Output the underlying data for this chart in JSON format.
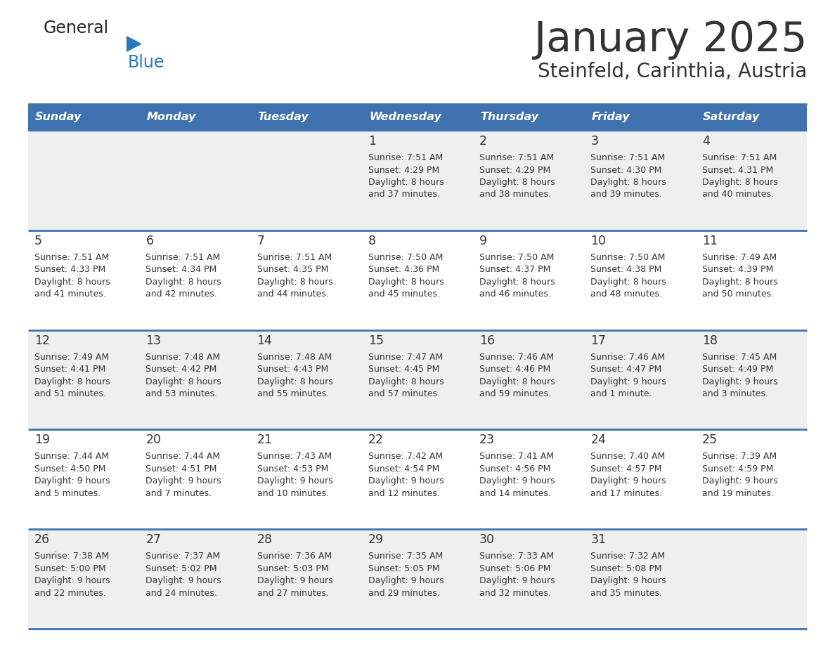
{
  "title": "January 2025",
  "subtitle": "Steinfeld, Carinthia, Austria",
  "days_of_week": [
    "Sunday",
    "Monday",
    "Tuesday",
    "Wednesday",
    "Thursday",
    "Friday",
    "Saturday"
  ],
  "header_bg": "#4072B0",
  "header_text": "#FFFFFF",
  "cell_bg_odd": "#EFEFEF",
  "cell_bg_even": "#FFFFFF",
  "row_line_color": "#4072B0",
  "text_color": "#333333",
  "title_color": "#333333",
  "logo_blue_color": "#2878BD",
  "calendar_data": [
    [
      {
        "day": null
      },
      {
        "day": null
      },
      {
        "day": null
      },
      {
        "day": 1,
        "sunrise": "7:51 AM",
        "sunset": "4:29 PM",
        "daylight_line1": "8 hours",
        "daylight_line2": "and 37 minutes."
      },
      {
        "day": 2,
        "sunrise": "7:51 AM",
        "sunset": "4:29 PM",
        "daylight_line1": "8 hours",
        "daylight_line2": "and 38 minutes."
      },
      {
        "day": 3,
        "sunrise": "7:51 AM",
        "sunset": "4:30 PM",
        "daylight_line1": "8 hours",
        "daylight_line2": "and 39 minutes."
      },
      {
        "day": 4,
        "sunrise": "7:51 AM",
        "sunset": "4:31 PM",
        "daylight_line1": "8 hours",
        "daylight_line2": "and 40 minutes."
      }
    ],
    [
      {
        "day": 5,
        "sunrise": "7:51 AM",
        "sunset": "4:33 PM",
        "daylight_line1": "8 hours",
        "daylight_line2": "and 41 minutes."
      },
      {
        "day": 6,
        "sunrise": "7:51 AM",
        "sunset": "4:34 PM",
        "daylight_line1": "8 hours",
        "daylight_line2": "and 42 minutes."
      },
      {
        "day": 7,
        "sunrise": "7:51 AM",
        "sunset": "4:35 PM",
        "daylight_line1": "8 hours",
        "daylight_line2": "and 44 minutes."
      },
      {
        "day": 8,
        "sunrise": "7:50 AM",
        "sunset": "4:36 PM",
        "daylight_line1": "8 hours",
        "daylight_line2": "and 45 minutes."
      },
      {
        "day": 9,
        "sunrise": "7:50 AM",
        "sunset": "4:37 PM",
        "daylight_line1": "8 hours",
        "daylight_line2": "and 46 minutes."
      },
      {
        "day": 10,
        "sunrise": "7:50 AM",
        "sunset": "4:38 PM",
        "daylight_line1": "8 hours",
        "daylight_line2": "and 48 minutes."
      },
      {
        "day": 11,
        "sunrise": "7:49 AM",
        "sunset": "4:39 PM",
        "daylight_line1": "8 hours",
        "daylight_line2": "and 50 minutes."
      }
    ],
    [
      {
        "day": 12,
        "sunrise": "7:49 AM",
        "sunset": "4:41 PM",
        "daylight_line1": "8 hours",
        "daylight_line2": "and 51 minutes."
      },
      {
        "day": 13,
        "sunrise": "7:48 AM",
        "sunset": "4:42 PM",
        "daylight_line1": "8 hours",
        "daylight_line2": "and 53 minutes."
      },
      {
        "day": 14,
        "sunrise": "7:48 AM",
        "sunset": "4:43 PM",
        "daylight_line1": "8 hours",
        "daylight_line2": "and 55 minutes."
      },
      {
        "day": 15,
        "sunrise": "7:47 AM",
        "sunset": "4:45 PM",
        "daylight_line1": "8 hours",
        "daylight_line2": "and 57 minutes."
      },
      {
        "day": 16,
        "sunrise": "7:46 AM",
        "sunset": "4:46 PM",
        "daylight_line1": "8 hours",
        "daylight_line2": "and 59 minutes."
      },
      {
        "day": 17,
        "sunrise": "7:46 AM",
        "sunset": "4:47 PM",
        "daylight_line1": "9 hours",
        "daylight_line2": "and 1 minute."
      },
      {
        "day": 18,
        "sunrise": "7:45 AM",
        "sunset": "4:49 PM",
        "daylight_line1": "9 hours",
        "daylight_line2": "and 3 minutes."
      }
    ],
    [
      {
        "day": 19,
        "sunrise": "7:44 AM",
        "sunset": "4:50 PM",
        "daylight_line1": "9 hours",
        "daylight_line2": "and 5 minutes."
      },
      {
        "day": 20,
        "sunrise": "7:44 AM",
        "sunset": "4:51 PM",
        "daylight_line1": "9 hours",
        "daylight_line2": "and 7 minutes."
      },
      {
        "day": 21,
        "sunrise": "7:43 AM",
        "sunset": "4:53 PM",
        "daylight_line1": "9 hours",
        "daylight_line2": "and 10 minutes."
      },
      {
        "day": 22,
        "sunrise": "7:42 AM",
        "sunset": "4:54 PM",
        "daylight_line1": "9 hours",
        "daylight_line2": "and 12 minutes."
      },
      {
        "day": 23,
        "sunrise": "7:41 AM",
        "sunset": "4:56 PM",
        "daylight_line1": "9 hours",
        "daylight_line2": "and 14 minutes."
      },
      {
        "day": 24,
        "sunrise": "7:40 AM",
        "sunset": "4:57 PM",
        "daylight_line1": "9 hours",
        "daylight_line2": "and 17 minutes."
      },
      {
        "day": 25,
        "sunrise": "7:39 AM",
        "sunset": "4:59 PM",
        "daylight_line1": "9 hours",
        "daylight_line2": "and 19 minutes."
      }
    ],
    [
      {
        "day": 26,
        "sunrise": "7:38 AM",
        "sunset": "5:00 PM",
        "daylight_line1": "9 hours",
        "daylight_line2": "and 22 minutes."
      },
      {
        "day": 27,
        "sunrise": "7:37 AM",
        "sunset": "5:02 PM",
        "daylight_line1": "9 hours",
        "daylight_line2": "and 24 minutes."
      },
      {
        "day": 28,
        "sunrise": "7:36 AM",
        "sunset": "5:03 PM",
        "daylight_line1": "9 hours",
        "daylight_line2": "and 27 minutes."
      },
      {
        "day": 29,
        "sunrise": "7:35 AM",
        "sunset": "5:05 PM",
        "daylight_line1": "9 hours",
        "daylight_line2": "and 29 minutes."
      },
      {
        "day": 30,
        "sunrise": "7:33 AM",
        "sunset": "5:06 PM",
        "daylight_line1": "9 hours",
        "daylight_line2": "and 32 minutes."
      },
      {
        "day": 31,
        "sunrise": "7:32 AM",
        "sunset": "5:08 PM",
        "daylight_line1": "9 hours",
        "daylight_line2": "and 35 minutes."
      },
      {
        "day": null
      }
    ]
  ]
}
